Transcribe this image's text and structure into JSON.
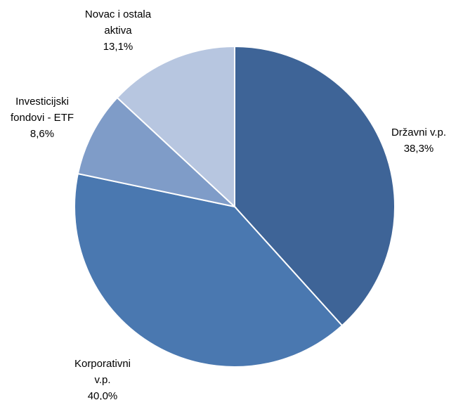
{
  "chart_data": {
    "type": "pie",
    "title": "",
    "start_angle_deg": 0,
    "direction": "clockwise",
    "slices": [
      {
        "label_lines": [
          "Državni v.p."
        ],
        "value_label": "38,3%",
        "value": 38.3,
        "color": "#3E6497"
      },
      {
        "label_lines": [
          "Korporativni",
          "v.p."
        ],
        "value_label": "40,0%",
        "value": 40.0,
        "color": "#4A78B0"
      },
      {
        "label_lines": [
          "Investicijski",
          "fondovi - ETF"
        ],
        "value_label": "8,6%",
        "value": 8.6,
        "color": "#7F9CC8"
      },
      {
        "label_lines": [
          "Novac i ostala",
          "aktiva"
        ],
        "value_label": "13,1%",
        "value": 13.1,
        "color": "#B7C6E0"
      }
    ]
  }
}
